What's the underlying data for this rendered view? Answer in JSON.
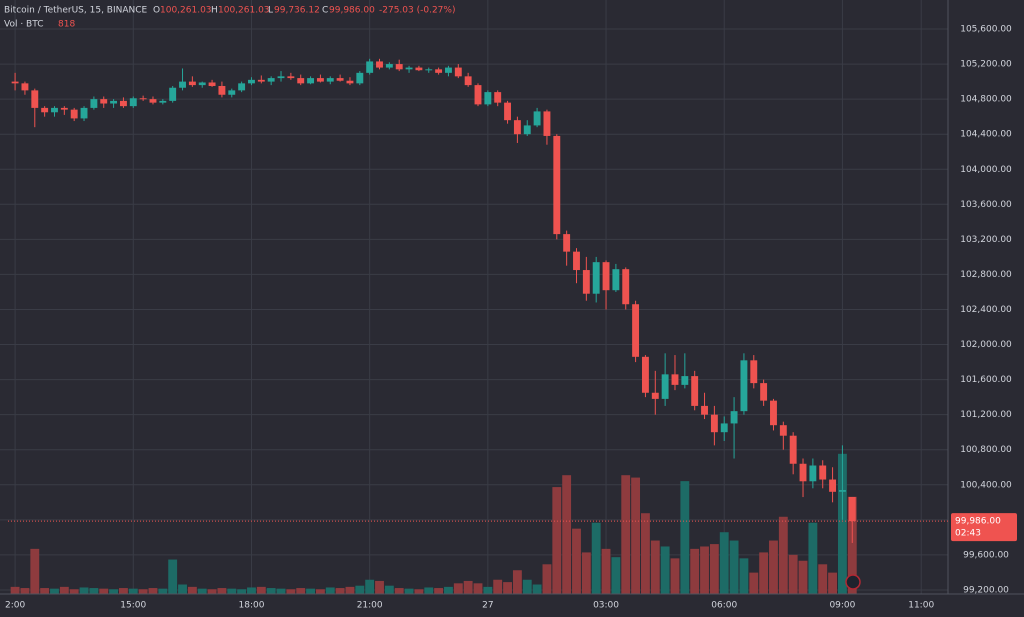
{
  "header": {
    "symbol": "Bitcoin / TetherUS, 15, BINANCE",
    "open_label": "O",
    "open": "100,261.03",
    "high_label": "H",
    "high": "100,261.03",
    "low_label": "L",
    "low": "99,736.12",
    "close_label": "C",
    "close": "99,986.00",
    "change": "-275.03 (-0.27%)",
    "volume_label": "Vol · BTC",
    "price_tag": "99,986.00",
    "countdown": "02:43"
  },
  "chart_data": {
    "type": "candlestick",
    "up_color": "#26a69a",
    "down_color": "#ef5350",
    "volume_up_color": "#1d6b66",
    "volume_down_color": "#8e3b3e",
    "grid": true,
    "x": [
      0,
      0.25,
      0.5,
      0.75,
      1,
      1.25,
      1.5,
      1.75,
      2,
      2.25,
      2.5,
      2.75,
      3,
      3.25,
      3.5,
      3.75,
      4,
      4.25,
      4.5,
      4.75,
      5,
      5.25,
      5.5,
      5.75,
      6,
      6.25,
      6.5,
      6.75,
      7,
      7.25,
      7.5,
      7.75,
      8,
      8.25,
      8.5,
      8.75,
      9,
      9.25,
      9.5,
      9.75,
      10,
      10.25,
      10.5,
      10.75,
      11,
      11.25,
      11.5,
      11.75,
      12,
      12.25,
      12.5,
      12.75,
      13,
      13.25,
      13.5,
      13.75,
      14,
      14.25,
      14.5,
      14.75,
      15,
      15.25,
      15.5,
      15.75,
      16,
      16.25,
      16.5,
      16.75,
      17,
      17.25,
      17.5,
      17.75,
      18,
      18.25,
      18.5,
      18.75,
      19,
      19.25,
      19.5,
      19.75,
      20,
      20.25,
      20.5,
      20.75,
      21,
      21.25
    ],
    "open": [
      105000,
      104980,
      104900,
      104700,
      104650,
      104700,
      104680,
      104580,
      104700,
      104800,
      104750,
      104780,
      104720,
      104810,
      104800,
      104760,
      104780,
      104930,
      105000,
      104960,
      104990,
      104950,
      104850,
      104900,
      104980,
      105020,
      105000,
      105040,
      105060,
      105040,
      104980,
      105040,
      105000,
      105040,
      105010,
      104980,
      105100,
      105230,
      105160,
      105200,
      105140,
      105160,
      105130,
      105140,
      105100,
      105160,
      105060,
      104960,
      104740,
      104880,
      104760,
      104560,
      104400,
      104500,
      104660,
      104380,
      103260,
      103060,
      102850,
      102580,
      102940,
      102620,
      102860,
      102460,
      101860,
      101450,
      101380,
      101660,
      101540,
      101640,
      101300,
      101200,
      101000,
      101100,
      101240,
      101820,
      101560,
      101360,
      101080,
      100960,
      100640,
      100440,
      100620,
      100460,
      100320,
      100261.03
    ],
    "high": [
      105100,
      105000,
      104920,
      104720,
      104720,
      104720,
      104700,
      104720,
      104830,
      104830,
      104800,
      104820,
      104830,
      104840,
      104830,
      104800,
      104950,
      105150,
      105060,
      105000,
      105020,
      105000,
      104920,
      105000,
      105050,
      105070,
      105060,
      105120,
      105100,
      105080,
      105060,
      105080,
      105060,
      105080,
      105050,
      105120,
      105260,
      105260,
      105220,
      105250,
      105180,
      105180,
      105160,
      105160,
      105180,
      105200,
      105100,
      104980,
      104900,
      104900,
      104780,
      104600,
      104560,
      104700,
      104680,
      104400,
      103300,
      103100,
      103000,
      103000,
      102960,
      102920,
      102880,
      102500,
      101880,
      101700,
      101900,
      101880,
      101900,
      101700,
      101450,
      101300,
      101180,
      101400,
      101900,
      101880,
      101600,
      101380,
      101120,
      101000,
      100700,
      100700,
      100680,
      100600,
      100850,
      100261.03
    ],
    "low": [
      104900,
      104850,
      104480,
      104600,
      104600,
      104620,
      104550,
      104550,
      104680,
      104700,
      104700,
      104700,
      104700,
      104780,
      104740,
      104740,
      104760,
      104900,
      104940,
      104930,
      104940,
      104820,
      104820,
      104880,
      104960,
      104980,
      104960,
      105000,
      105020,
      104960,
      104970,
      104990,
      104970,
      105000,
      104960,
      104960,
      105080,
      105140,
      105140,
      105120,
      105100,
      105120,
      105100,
      105080,
      105060,
      105040,
      104940,
      104720,
      104720,
      104720,
      104520,
      104300,
      104380,
      104480,
      104280,
      103200,
      102900,
      102700,
      102500,
      102480,
      102400,
      102600,
      102400,
      101800,
      101400,
      101200,
      101300,
      101480,
      101500,
      101250,
      101150,
      100850,
      100900,
      100700,
      101200,
      101500,
      101300,
      101020,
      100800,
      100520,
      100260,
      100360,
      100360,
      100200,
      100000,
      99736.12
    ],
    "close": [
      104980,
      104900,
      104700,
      104650,
      104700,
      104680,
      104580,
      104700,
      104800,
      104750,
      104780,
      104720,
      104810,
      104800,
      104760,
      104780,
      104930,
      105000,
      104960,
      104990,
      104950,
      104850,
      104900,
      104980,
      105020,
      105000,
      105040,
      105060,
      105040,
      104980,
      105040,
      105000,
      105040,
      105010,
      104980,
      105100,
      105230,
      105160,
      105200,
      105140,
      105160,
      105130,
      105140,
      105100,
      105160,
      105060,
      104960,
      104740,
      104880,
      104760,
      104560,
      104400,
      104500,
      104660,
      104380,
      103260,
      103060,
      102850,
      102580,
      102940,
      102620,
      102860,
      102460,
      101860,
      101450,
      101380,
      101660,
      101540,
      101640,
      101300,
      101200,
      101000,
      101100,
      101240,
      101820,
      101560,
      101360,
      101080,
      100960,
      100640,
      100440,
      100620,
      100460,
      100320,
      100340,
      99986
    ],
    "volume": [
      60,
      50,
      380,
      50,
      45,
      60,
      40,
      55,
      50,
      45,
      40,
      50,
      45,
      40,
      50,
      45,
      290,
      80,
      60,
      45,
      40,
      50,
      45,
      40,
      55,
      60,
      50,
      45,
      40,
      50,
      45,
      40,
      55,
      50,
      60,
      70,
      120,
      110,
      70,
      50,
      45,
      40,
      55,
      50,
      60,
      90,
      110,
      90,
      60,
      120,
      100,
      200,
      120,
      80,
      250,
      900,
      1000,
      550,
      350,
      600,
      380,
      310,
      1000,
      980,
      680,
      450,
      400,
      300,
      950,
      380,
      400,
      420,
      520,
      450,
      300,
      180,
      350,
      450,
      650,
      330,
      280,
      600,
      250,
      180,
      1180,
      818
    ],
    "xlim": [
      -0.18,
      23.68
    ],
    "xticks": [
      {
        "value": 0,
        "label": "2:00"
      },
      {
        "value": 3,
        "label": "15:00"
      },
      {
        "value": 6,
        "label": "18:00"
      },
      {
        "value": 9,
        "label": "21:00"
      },
      {
        "value": 12,
        "label": "27"
      },
      {
        "value": 15,
        "label": "03:00"
      },
      {
        "value": 18,
        "label": "06:00"
      },
      {
        "value": 21,
        "label": "09:00"
      },
      {
        "value": 23,
        "label": "11:00"
      }
    ],
    "ylim": [
      99154,
      105931
    ],
    "yticks": [
      {
        "value": 99200,
        "label": "99,200.00"
      },
      {
        "value": 99600,
        "label": "99,600.00"
      },
      {
        "value": 100000,
        "label": "100,000.00"
      },
      {
        "value": 100400,
        "label": "100,400.00"
      },
      {
        "value": 100800,
        "label": "100,800.00"
      },
      {
        "value": 101200,
        "label": "101,200.00"
      },
      {
        "value": 101600,
        "label": "101,600.00"
      },
      {
        "value": 102000,
        "label": "102,000.00"
      },
      {
        "value": 102400,
        "label": "102,400.00"
      },
      {
        "value": 102800,
        "label": "102,800.00"
      },
      {
        "value": 103200,
        "label": "103,200.00"
      },
      {
        "value": 103600,
        "label": "103,600.00"
      },
      {
        "value": 104000,
        "label": "104,000.00"
      },
      {
        "value": 104400,
        "label": "104,400.00"
      },
      {
        "value": 104800,
        "label": "104,800.00"
      },
      {
        "value": 105200,
        "label": "105,200.00"
      },
      {
        "value": 105600,
        "label": "105,600.00"
      }
    ],
    "vlim": [
      0,
      5000
    ]
  }
}
